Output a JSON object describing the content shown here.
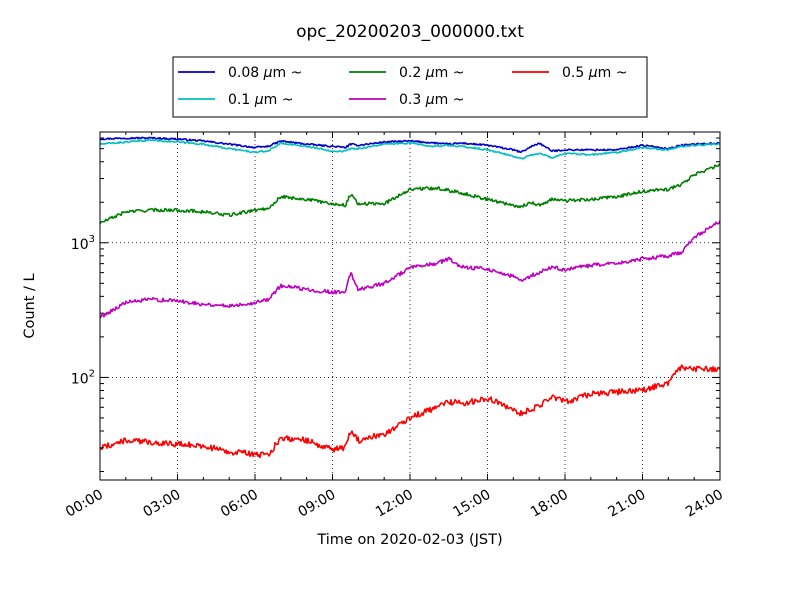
{
  "chart_data": {
    "type": "line",
    "title": "opc_20200203_000000.txt",
    "xlabel": "Time on 2020-02-03 (JST)",
    "ylabel": "Count / L",
    "y_scale": "log",
    "grid": true,
    "legend": "top-center",
    "x_ticks": [
      "00:00",
      "03:00",
      "06:00",
      "09:00",
      "12:00",
      "15:00",
      "18:00",
      "21:00",
      "24:00"
    ],
    "y_ticks": [
      {
        "value": 1000,
        "base": "10",
        "exp": "3"
      },
      {
        "value": 100,
        "base": "10",
        "exp": "2"
      }
    ],
    "x": [
      0,
      1,
      2,
      3,
      4,
      5,
      6,
      6.5,
      7,
      8,
      9,
      9.5,
      9.7,
      10,
      11,
      12,
      13,
      13.5,
      14,
      15,
      16,
      16.3,
      16.7,
      17,
      17.5,
      18,
      19,
      20,
      21,
      22,
      22.5,
      23,
      24
    ],
    "series": [
      {
        "name": "0.08",
        "unit": "µm",
        "suffix": "~",
        "color": "#0000cc",
        "values": [
          5900,
          6000,
          6000,
          5900,
          5700,
          5400,
          5100,
          5200,
          5700,
          5400,
          5200,
          5100,
          5400,
          5300,
          5600,
          5700,
          5500,
          5400,
          5500,
          5300,
          4900,
          4700,
          5200,
          5500,
          4800,
          4900,
          4900,
          4900,
          5300,
          5000,
          5300,
          5400,
          5500
        ]
      },
      {
        "name": "0.1",
        "unit": "µm",
        "suffix": "~",
        "color": "#00bfbf",
        "values": [
          5400,
          5600,
          5800,
          5600,
          5400,
          5000,
          4700,
          4800,
          5500,
          5200,
          4800,
          4800,
          5000,
          5000,
          5400,
          5500,
          5200,
          5300,
          5200,
          4900,
          4400,
          4200,
          4500,
          4600,
          4300,
          4600,
          4500,
          4700,
          5100,
          4900,
          5200,
          5300,
          5400
        ]
      },
      {
        "name": "0.2",
        "unit": "µm",
        "suffix": "~",
        "color": "#008000",
        "values": [
          1400,
          1700,
          1750,
          1750,
          1700,
          1600,
          1750,
          1800,
          2200,
          2100,
          1950,
          1900,
          2300,
          1950,
          1950,
          2500,
          2550,
          2450,
          2350,
          2100,
          1900,
          1850,
          2000,
          1900,
          2100,
          2050,
          2100,
          2200,
          2400,
          2500,
          2700,
          3200,
          3800
        ]
      },
      {
        "name": "0.3",
        "unit": "µm",
        "suffix": "~",
        "color": "#bf00bf",
        "values": [
          280,
          360,
          380,
          370,
          350,
          340,
          360,
          380,
          480,
          450,
          430,
          430,
          600,
          450,
          500,
          650,
          700,
          760,
          660,
          640,
          560,
          520,
          570,
          600,
          660,
          630,
          680,
          700,
          760,
          800,
          850,
          1100,
          1450
        ]
      },
      {
        "name": "0.5",
        "unit": "µm",
        "suffix": "~",
        "color": "#ff0000",
        "values": [
          30,
          34,
          33,
          32,
          31,
          28,
          27,
          26,
          36,
          34,
          29,
          30,
          40,
          34,
          38,
          50,
          60,
          66,
          64,
          70,
          58,
          54,
          58,
          62,
          72,
          66,
          75,
          78,
          80,
          92,
          120,
          115,
          115
        ]
      }
    ]
  }
}
